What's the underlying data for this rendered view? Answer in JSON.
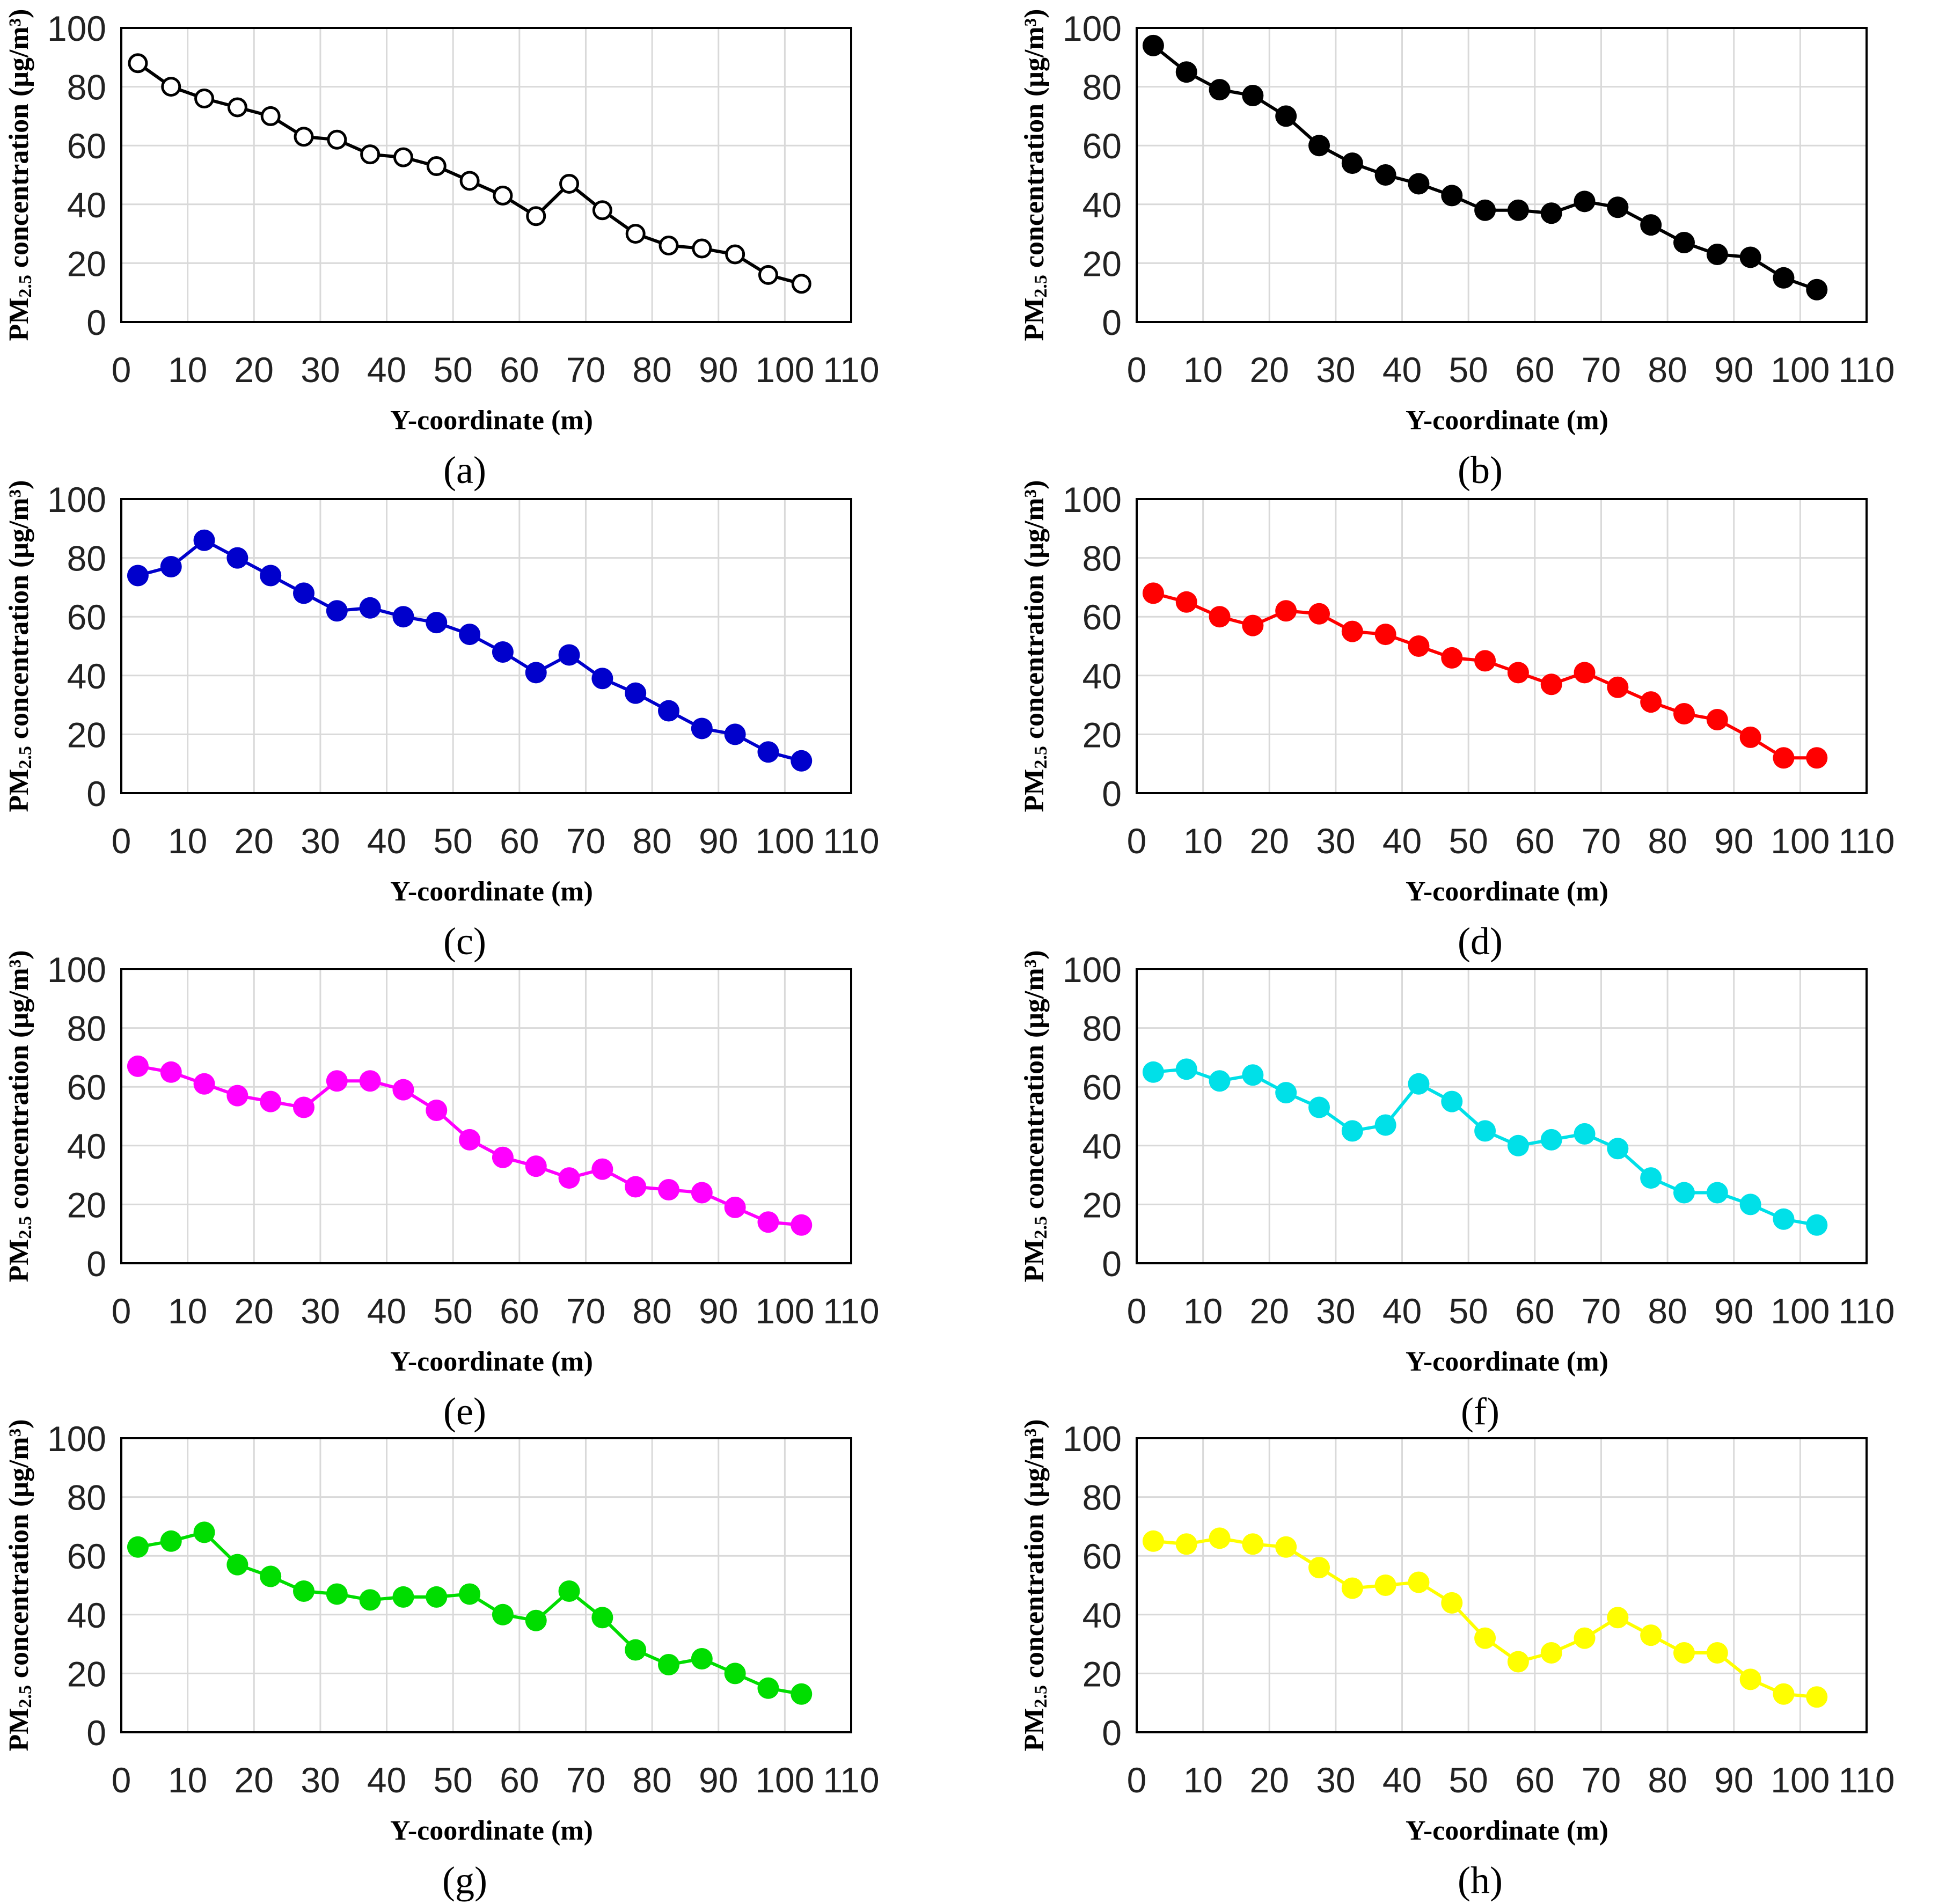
{
  "figure": {
    "xticks": [
      "0",
      "10",
      "20",
      "30",
      "40",
      "50",
      "60",
      "70",
      "80",
      "90",
      "100",
      "110"
    ],
    "yticks": [
      "0",
      "20",
      "40",
      "60",
      "80",
      "100"
    ]
  },
  "chart_data": [
    {
      "type": "line",
      "panel_label": "(a)",
      "xlabel": "Y-coordinate (m)",
      "ylabel_prefix": "PM",
      "ylabel_sub": "2.5",
      "ylabel_suffix": " concentration (μg/m³)",
      "xlim": [
        0,
        110
      ],
      "ylim": [
        0,
        100
      ],
      "grid": true,
      "color": "#000000",
      "marker": "open-circle",
      "x": [
        2.5,
        7.5,
        12.5,
        17.5,
        22.5,
        27.5,
        32.5,
        37.5,
        42.5,
        47.5,
        52.5,
        57.5,
        62.5,
        67.5,
        72.5,
        77.5,
        82.5,
        87.5,
        92.5,
        97.5,
        102.5
      ],
      "y": [
        88,
        80,
        76,
        73,
        70,
        63,
        62,
        57,
        56,
        53,
        48,
        43,
        36,
        47,
        38,
        30,
        26,
        25,
        23,
        16,
        13
      ]
    },
    {
      "type": "line",
      "panel_label": "(b)",
      "xlabel": "Y-coordinate (m)",
      "ylabel_prefix": "PM",
      "ylabel_sub": "2.5",
      "ylabel_suffix": " concentration (μg/m³)",
      "xlim": [
        0,
        110
      ],
      "ylim": [
        0,
        100
      ],
      "grid": true,
      "color": "#000000",
      "marker": "filled-circle",
      "x": [
        2.5,
        7.5,
        12.5,
        17.5,
        22.5,
        27.5,
        32.5,
        37.5,
        42.5,
        47.5,
        52.5,
        57.5,
        62.5,
        67.5,
        72.5,
        77.5,
        82.5,
        87.5,
        92.5,
        97.5,
        102.5
      ],
      "y": [
        94,
        85,
        79,
        77,
        70,
        60,
        54,
        50,
        47,
        43,
        38,
        38,
        37,
        41,
        39,
        33,
        27,
        23,
        22,
        15,
        11
      ]
    },
    {
      "type": "line",
      "panel_label": "(c)",
      "xlabel": "Y-coordinate (m)",
      "ylabel_prefix": "PM",
      "ylabel_sub": "2.5",
      "ylabel_suffix": " concentration (μg/m³)",
      "xlim": [
        0,
        110
      ],
      "ylim": [
        0,
        100
      ],
      "grid": true,
      "color": "#0000cc",
      "marker": "filled-circle",
      "x": [
        2.5,
        7.5,
        12.5,
        17.5,
        22.5,
        27.5,
        32.5,
        37.5,
        42.5,
        47.5,
        52.5,
        57.5,
        62.5,
        67.5,
        72.5,
        77.5,
        82.5,
        87.5,
        92.5,
        97.5,
        102.5
      ],
      "y": [
        74,
        77,
        86,
        80,
        74,
        68,
        62,
        63,
        60,
        58,
        54,
        48,
        41,
        47,
        39,
        34,
        28,
        22,
        20,
        14,
        11
      ]
    },
    {
      "type": "line",
      "panel_label": "(d)",
      "xlabel": "Y-coordinate (m)",
      "ylabel_prefix": "PM",
      "ylabel_sub": "2.5",
      "ylabel_suffix": " concentration (μg/m³)",
      "xlim": [
        0,
        110
      ],
      "ylim": [
        0,
        100
      ],
      "grid": true,
      "color": "#ff0000",
      "marker": "filled-circle",
      "x": [
        2.5,
        7.5,
        12.5,
        17.5,
        22.5,
        27.5,
        32.5,
        37.5,
        42.5,
        47.5,
        52.5,
        57.5,
        62.5,
        67.5,
        72.5,
        77.5,
        82.5,
        87.5,
        92.5,
        97.5,
        102.5
      ],
      "y": [
        68,
        65,
        60,
        57,
        62,
        61,
        55,
        54,
        50,
        46,
        45,
        41,
        37,
        41,
        36,
        31,
        27,
        25,
        19,
        12,
        12
      ]
    },
    {
      "type": "line",
      "panel_label": "(e)",
      "xlabel": "Y-coordinate (m)",
      "ylabel_prefix": "PM",
      "ylabel_sub": "2.5",
      "ylabel_suffix": " concentration (μg/m³)",
      "xlim": [
        0,
        110
      ],
      "ylim": [
        0,
        100
      ],
      "grid": true,
      "color": "#ff00ff",
      "marker": "filled-circle",
      "x": [
        2.5,
        7.5,
        12.5,
        17.5,
        22.5,
        27.5,
        32.5,
        37.5,
        42.5,
        47.5,
        52.5,
        57.5,
        62.5,
        67.5,
        72.5,
        77.5,
        82.5,
        87.5,
        92.5,
        97.5,
        102.5
      ],
      "y": [
        67,
        65,
        61,
        57,
        55,
        53,
        62,
        62,
        59,
        52,
        42,
        36,
        33,
        29,
        32,
        26,
        25,
        24,
        19,
        14,
        13
      ]
    },
    {
      "type": "line",
      "panel_label": "(f)",
      "xlabel": "Y-coordinate (m)",
      "ylabel_prefix": "PM",
      "ylabel_sub": "2.5",
      "ylabel_suffix": " concentration (μg/m³)",
      "xlim": [
        0,
        110
      ],
      "ylim": [
        0,
        100
      ],
      "grid": true,
      "color": "#00e0e8",
      "marker": "filled-circle",
      "x": [
        2.5,
        7.5,
        12.5,
        17.5,
        22.5,
        27.5,
        32.5,
        37.5,
        42.5,
        47.5,
        52.5,
        57.5,
        62.5,
        67.5,
        72.5,
        77.5,
        82.5,
        87.5,
        92.5,
        97.5,
        102.5
      ],
      "y": [
        65,
        66,
        62,
        64,
        58,
        53,
        45,
        47,
        61,
        55,
        45,
        40,
        42,
        44,
        39,
        29,
        24,
        24,
        20,
        15,
        13
      ]
    },
    {
      "type": "line",
      "panel_label": "(g)",
      "xlabel": "Y-coordinate (m)",
      "ylabel_prefix": "PM",
      "ylabel_sub": "2.5",
      "ylabel_suffix": " concentration (μg/m³)",
      "xlim": [
        0,
        110
      ],
      "ylim": [
        0,
        100
      ],
      "grid": true,
      "color": "#00dd00",
      "marker": "filled-circle",
      "x": [
        2.5,
        7.5,
        12.5,
        17.5,
        22.5,
        27.5,
        32.5,
        37.5,
        42.5,
        47.5,
        52.5,
        57.5,
        62.5,
        67.5,
        72.5,
        77.5,
        82.5,
        87.5,
        92.5,
        97.5,
        102.5
      ],
      "y": [
        63,
        65,
        68,
        57,
        53,
        48,
        47,
        45,
        46,
        46,
        47,
        40,
        38,
        48,
        39,
        28,
        23,
        25,
        20,
        15,
        13
      ]
    },
    {
      "type": "line",
      "panel_label": "(h)",
      "xlabel": "Y-coordinate (m)",
      "ylabel_prefix": "PM",
      "ylabel_sub": "2.5",
      "ylabel_suffix": " concentration (μg/m³)",
      "xlim": [
        0,
        110
      ],
      "ylim": [
        0,
        100
      ],
      "grid": true,
      "color": "#ffff00",
      "marker": "filled-circle",
      "x": [
        2.5,
        7.5,
        12.5,
        17.5,
        22.5,
        27.5,
        32.5,
        37.5,
        42.5,
        47.5,
        52.5,
        57.5,
        62.5,
        67.5,
        72.5,
        77.5,
        82.5,
        87.5,
        92.5,
        97.5,
        102.5
      ],
      "y": [
        65,
        64,
        66,
        64,
        63,
        56,
        49,
        50,
        51,
        44,
        32,
        24,
        27,
        32,
        39,
        33,
        27,
        27,
        18,
        13,
        12
      ]
    }
  ]
}
